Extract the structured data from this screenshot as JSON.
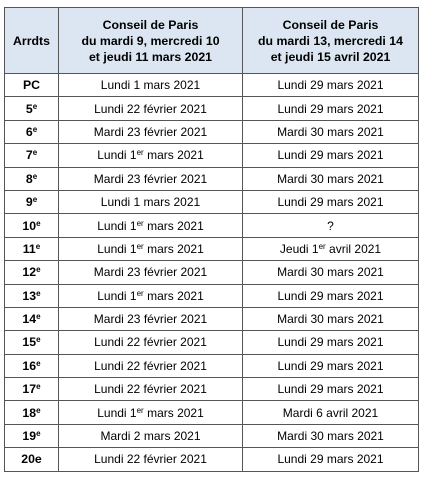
{
  "header": {
    "col1": "Arrdts",
    "col2": [
      "Conseil de Paris",
      "du mardi 9, mercredi 10",
      "et jeudi 11 mars 2021"
    ],
    "col3": [
      "Conseil de Paris",
      "du mardi 13, mercredi 14",
      "et jeudi 15 avril 2021"
    ]
  },
  "rows": [
    {
      "arr": "PC",
      "sfx": "",
      "a": [
        "Lundi 1 mars 2021"
      ],
      "b": [
        "Lundi 29 mars 2021"
      ]
    },
    {
      "arr": "5",
      "sfx": "e",
      "a": [
        "Lundi 22 février 2021"
      ],
      "b": [
        "Lundi 29 mars 2021"
      ]
    },
    {
      "arr": "6",
      "sfx": "e",
      "a": [
        "Mardi 23 février 2021"
      ],
      "b": [
        "Mardi 30 mars 2021"
      ]
    },
    {
      "arr": "7",
      "sfx": "e",
      "a": [
        "Lundi 1",
        "er",
        " mars 2021"
      ],
      "b": [
        "Lundi 29 mars 2021"
      ]
    },
    {
      "arr": "8",
      "sfx": "e",
      "a": [
        "Mardi 23 février 2021"
      ],
      "b": [
        "Mardi 30 mars 2021"
      ]
    },
    {
      "arr": "9",
      "sfx": "e",
      "a": [
        "Lundi 1 mars 2021"
      ],
      "b": [
        "Lundi 29 mars 2021"
      ]
    },
    {
      "arr": "10",
      "sfx": "e",
      "a": [
        "Lundi 1",
        "er",
        " mars 2021"
      ],
      "b": [
        "?"
      ]
    },
    {
      "arr": "11",
      "sfx": "e",
      "a": [
        "Lundi 1",
        "er",
        " mars 2021"
      ],
      "b": [
        "Jeudi 1",
        "er",
        " avril 2021"
      ]
    },
    {
      "arr": "12",
      "sfx": "e",
      "a": [
        "Mardi 23 février 2021"
      ],
      "b": [
        "Mardi 30 mars 2021"
      ]
    },
    {
      "arr": "13",
      "sfx": "e",
      "a": [
        "Lundi 1",
        "er",
        " mars 2021"
      ],
      "b": [
        "Lundi 29 mars 2021"
      ]
    },
    {
      "arr": "14",
      "sfx": "e",
      "a": [
        "Mardi 23 février 2021"
      ],
      "b": [
        "Mardi 30 mars 2021"
      ]
    },
    {
      "arr": "15",
      "sfx": "e",
      "a": [
        "Lundi 22 février 2021"
      ],
      "b": [
        "Lundi 29 mars 2021"
      ]
    },
    {
      "arr": "16",
      "sfx": "e",
      "a": [
        "Lundi 22 février 2021"
      ],
      "b": [
        "Lundi 29 mars 2021"
      ]
    },
    {
      "arr": "17",
      "sfx": "e",
      "a": [
        "Lundi 22 février 2021"
      ],
      "b": [
        "Lundi 29 mars 2021"
      ]
    },
    {
      "arr": "18",
      "sfx": "e",
      "a": [
        "Lundi 1",
        "er",
        " mars 2021"
      ],
      "b": [
        "Mardi 6 avril 2021"
      ]
    },
    {
      "arr": "19",
      "sfx": "e",
      "a": [
        "Mardi 2 mars 2021"
      ],
      "b": [
        "Mardi 30 mars 2021"
      ]
    },
    {
      "arr": "20e",
      "sfx": "",
      "a": [
        "Lundi 22 février 2021"
      ],
      "b": [
        "Lundi 29 mars 2021"
      ]
    }
  ]
}
